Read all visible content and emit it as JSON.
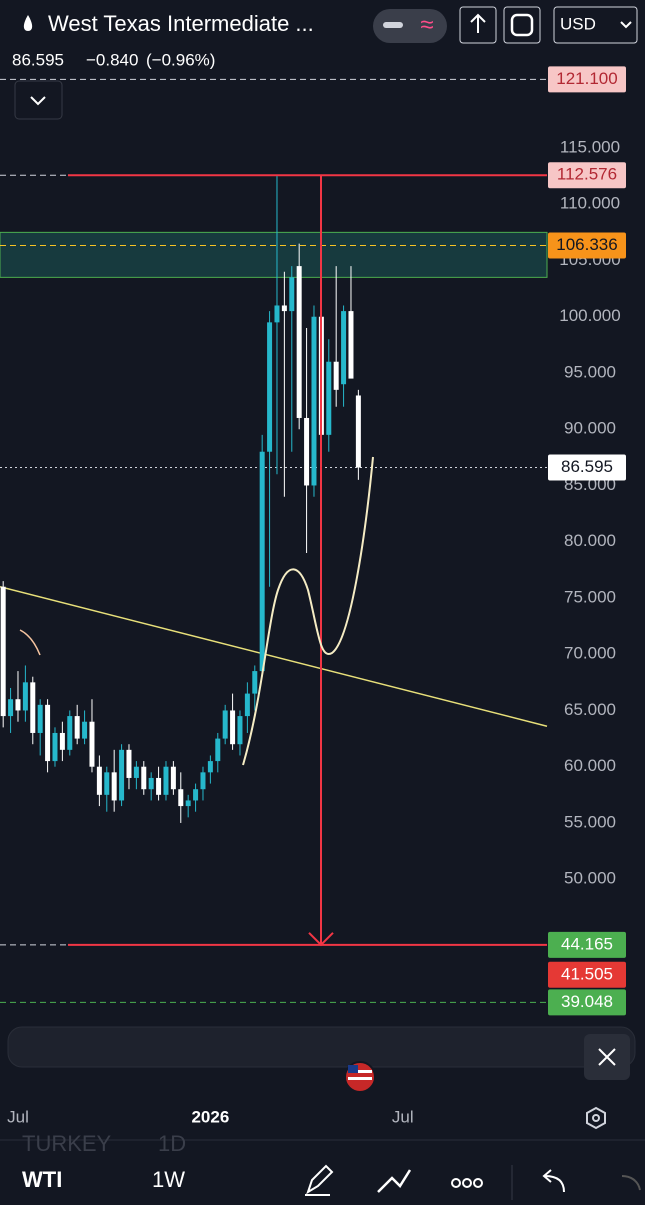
{
  "header": {
    "title": "West Texas Intermediate ...",
    "price": "86.595",
    "change": "−0.840",
    "change_pct": "(−0.96%)",
    "currency": "USD"
  },
  "chart_data": {
    "type": "candlestick",
    "x": [
      -2,
      -1,
      0,
      1,
      2,
      3,
      4,
      5,
      6,
      7,
      8,
      9,
      10,
      11,
      12,
      13,
      14,
      15,
      16,
      17,
      18,
      19,
      20,
      21,
      22,
      23,
      24,
      25,
      26,
      27,
      28,
      29,
      30,
      31,
      32,
      33,
      34,
      35,
      36,
      37,
      38,
      39,
      40,
      41,
      42,
      43,
      44,
      45,
      46
    ],
    "open": [
      76,
      64.5,
      66,
      65,
      67.5,
      63,
      65.5,
      60.5,
      63,
      61.5,
      64.5,
      62.5,
      64,
      60,
      57.5,
      59.5,
      57,
      61.5,
      59,
      60,
      58,
      59,
      57.5,
      60,
      58,
      56.5,
      57,
      58,
      59.5,
      60.5,
      62.5,
      65,
      62,
      64.5,
      66.5,
      68.5,
      88,
      99.5,
      101,
      100.5,
      104.5,
      91,
      85,
      100,
      89.5,
      96,
      94,
      100.5,
      93
    ],
    "high": [
      76.5,
      67,
      68.5,
      69,
      68,
      66,
      66,
      63.5,
      64,
      65,
      65.5,
      65,
      66,
      61,
      60,
      61.5,
      62,
      62,
      60.5,
      60.5,
      59.5,
      60,
      60.5,
      60.5,
      59.5,
      57.5,
      58.5,
      60,
      61,
      63,
      65.5,
      66.5,
      65,
      67.5,
      69,
      89.5,
      100.5,
      112.5,
      104,
      104.5,
      106.5,
      99,
      101,
      107.5,
      98,
      104.5,
      101,
      104.5,
      93.5
    ],
    "low": [
      63.5,
      63,
      64,
      64,
      62,
      61,
      59.5,
      60,
      60.5,
      61,
      62,
      62,
      59.5,
      56.5,
      56,
      56,
      56.5,
      58,
      58,
      57.5,
      57,
      57,
      57,
      57.5,
      55,
      55.5,
      56,
      57,
      58.5,
      59.5,
      62,
      61.5,
      61,
      63,
      65,
      68,
      76,
      86,
      84,
      88,
      90,
      79,
      84,
      88,
      88,
      92,
      92,
      95,
      85.5
    ],
    "close": [
      64.5,
      66,
      65,
      67.5,
      63,
      65.5,
      60.5,
      63,
      61.5,
      64.5,
      62.5,
      64,
      60,
      57.5,
      59.5,
      57,
      61.5,
      59,
      60,
      58,
      59,
      57.5,
      60,
      58,
      56.5,
      57,
      58,
      59.5,
      60.5,
      62.5,
      65,
      62,
      64.5,
      66.5,
      68.5,
      88,
      99.5,
      101,
      100.5,
      103.5,
      91,
      85,
      100,
      89.5,
      96,
      93.5,
      100.5,
      94.5,
      86.595
    ],
    "up_color": "#26b8cc",
    "down_color": "#ffffff",
    "ylim": [
      37.04,
      123.71
    ],
    "yticks": [
      {
        "value": 50,
        "label": "50.000"
      },
      {
        "value": 55,
        "label": "55.000"
      },
      {
        "value": 60,
        "label": "60.000"
      },
      {
        "value": 65,
        "label": "65.000"
      },
      {
        "value": 70,
        "label": "70.000"
      },
      {
        "value": 75,
        "label": "75.000"
      },
      {
        "value": 80,
        "label": "80.000"
      },
      {
        "value": 85,
        "label": "85.000"
      },
      {
        "value": 90,
        "label": "90.000"
      },
      {
        "value": 95,
        "label": "95.000"
      },
      {
        "value": 100,
        "label": "100.000"
      },
      {
        "value": 105,
        "label": "105.000"
      },
      {
        "value": 110,
        "label": "110.000"
      },
      {
        "value": 115,
        "label": "115.000"
      }
    ],
    "xlim": [
      -2.43,
      71.49
    ],
    "xticks": [
      {
        "value": 0,
        "label": "Jul"
      },
      {
        "value": 26,
        "label": "2026"
      },
      {
        "value": 52,
        "label": "Jul"
      }
    ],
    "zone": [
      103.5,
      107.5
    ],
    "trendline": {
      "x": [
        -2.43,
        71.49
      ],
      "y": [
        76.0,
        63.6
      ],
      "color": "#e8e07a"
    },
    "price_levels": [
      {
        "price": 121.1,
        "price_label": "121.100",
        "color": "#f7c6c6",
        "text_color": "#b22833",
        "line": "dashed-white"
      },
      {
        "price": 112.576,
        "color": "#f7c6c6",
        "text_color": "#b22833",
        "line": "red"
      },
      {
        "price": 106.336,
        "color": "#f7931a",
        "text_color": "#131722",
        "line": "dashed-orange"
      },
      {
        "price": 86.595,
        "color": "#ffffff",
        "text_color": "#131722",
        "line": "dotted-white"
      },
      {
        "price": 44.165,
        "color": "#4caf50",
        "text_color": "#ffffff",
        "line": "red"
      },
      {
        "price": 41.505,
        "color": "#e53935",
        "text_color": "#ffffff",
        "line": "none"
      },
      {
        "price": 39.048,
        "color": "#4caf50",
        "text_color": "#ffffff",
        "line": "dashed-green"
      }
    ]
  },
  "footer": {
    "symbol": "WTI",
    "interval": "1W",
    "hidden_symbol": "TURKEY",
    "hidden_interval": "1D"
  }
}
